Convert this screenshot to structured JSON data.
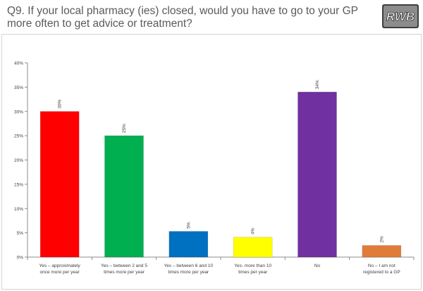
{
  "title": "Q9. If your local pharmacy (ies) closed, would you have to go to your GP\nmore often to get advice or treatment?",
  "logo_text": "RWB",
  "chart_data": {
    "type": "bar",
    "categories": [
      [
        "Yes – approximately",
        "once more per year"
      ],
      [
        "Yes – between 2 and 5",
        "times more per year"
      ],
      [
        "Yes – between 6 and 10",
        "times more per year"
      ],
      [
        "Yes- more than 10",
        "times per year"
      ],
      [
        "No"
      ],
      [
        "No – I am not",
        "registered to a GP"
      ]
    ],
    "values": [
      30,
      25,
      5,
      4,
      34,
      2
    ],
    "bar_heights": [
      30,
      25,
      5.3,
      4.1,
      34,
      2.4
    ],
    "data_labels": [
      "30%",
      "25%",
      "5%",
      "4%",
      "34%",
      "2%"
    ],
    "colors": [
      "#ff0000",
      "#00b050",
      "#0070c0",
      "#ffff00",
      "#7030a0",
      "#e07b39"
    ],
    "ylim": [
      0,
      40
    ],
    "yticks": [
      0,
      5,
      10,
      15,
      20,
      25,
      30,
      35,
      40
    ],
    "ytick_labels": [
      "0%",
      "5%",
      "10%",
      "15%",
      "20%",
      "25%",
      "30%",
      "35%",
      "40%"
    ],
    "grid": false,
    "legend": "none"
  }
}
